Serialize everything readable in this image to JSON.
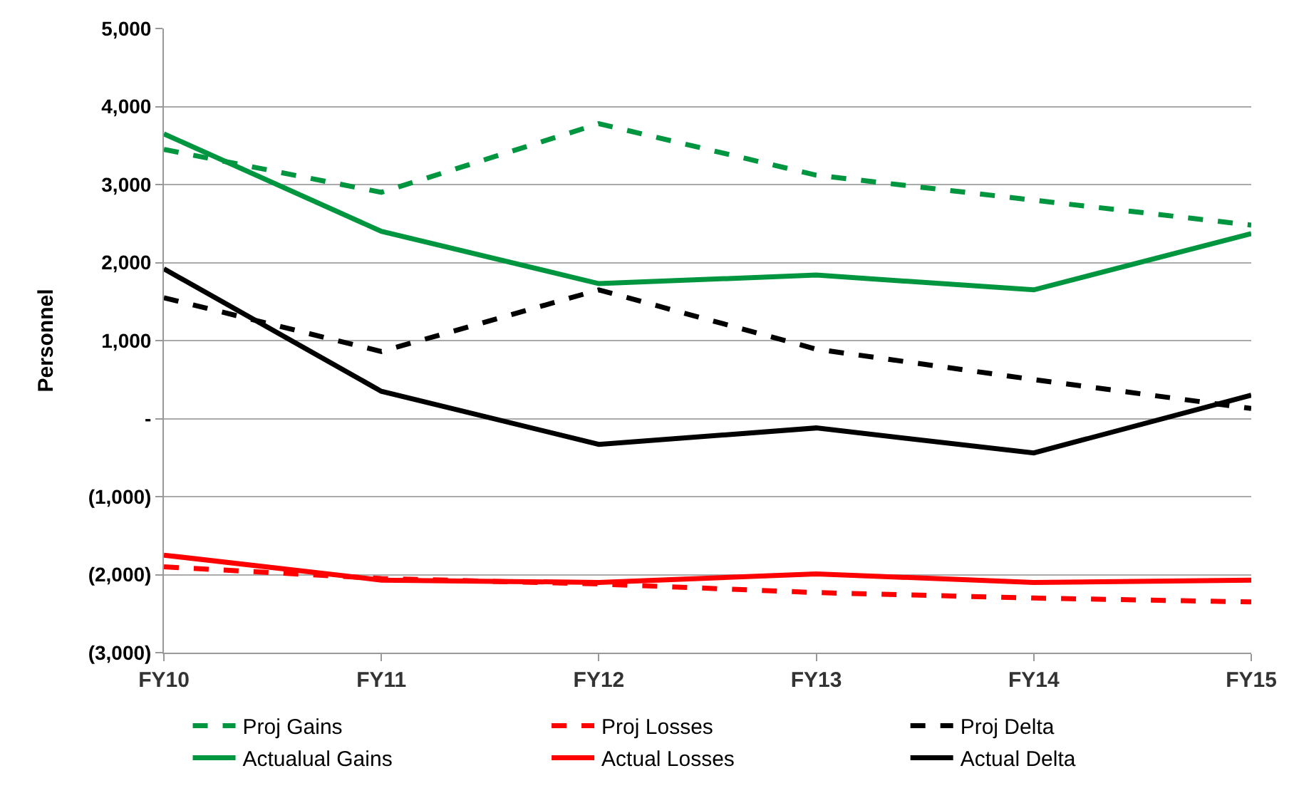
{
  "chart_data": {
    "type": "line",
    "ylabel": "Personnel",
    "categories": [
      "FY10",
      "FY11",
      "FY12",
      "FY13",
      "FY14",
      "FY15"
    ],
    "ylim": [
      -3000,
      5000
    ],
    "yticks": [
      {
        "value": -3000,
        "label": "(3,000)"
      },
      {
        "value": -2000,
        "label": "(2,000)"
      },
      {
        "value": -1000,
        "label": "(1,000)"
      },
      {
        "value": 0,
        "label": "-"
      },
      {
        "value": 1000,
        "label": "1,000"
      },
      {
        "value": 2000,
        "label": "2,000"
      },
      {
        "value": 3000,
        "label": "3,000"
      },
      {
        "value": 4000,
        "label": "4,000"
      },
      {
        "value": 5000,
        "label": "5,000"
      }
    ],
    "grid": "y",
    "legend": "bottom",
    "marker": "none",
    "series": [
      {
        "name": "Proj Gains",
        "color": "#00963f",
        "line_style": "dashed",
        "values": [
          3450,
          2900,
          3780,
          3120,
          2800,
          2480
        ]
      },
      {
        "name": "Proj Losses",
        "color": "#ff0000",
        "line_style": "dashed",
        "values": [
          -1900,
          -2050,
          -2120,
          -2230,
          -2300,
          -2350
        ]
      },
      {
        "name": "Proj Delta",
        "color": "#000000",
        "line_style": "dashed",
        "values": [
          1550,
          860,
          1650,
          890,
          500,
          130
        ]
      },
      {
        "name": "Actualual Gains",
        "color": "#00963f",
        "line_style": "solid",
        "values": [
          3650,
          2400,
          1730,
          1840,
          1650,
          2370
        ]
      },
      {
        "name": "Actual Losses",
        "color": "#ff0000",
        "line_style": "solid",
        "values": [
          -1750,
          -2070,
          -2100,
          -1990,
          -2100,
          -2070
        ]
      },
      {
        "name": "Actual Delta",
        "color": "#000000",
        "line_style": "solid",
        "values": [
          1920,
          350,
          -330,
          -120,
          -440,
          300
        ]
      }
    ]
  }
}
